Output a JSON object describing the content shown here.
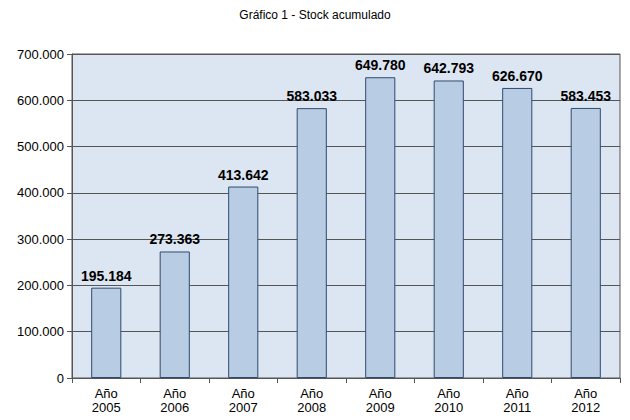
{
  "chart_data": {
    "type": "bar",
    "title": "Gráfico 1 - Stock acumulado",
    "categories": [
      "Año 2005",
      "Año 2006",
      "Año 2007",
      "Año 2008",
      "Año 2009",
      "Año 2010",
      "Año 2011",
      "Año 2012"
    ],
    "values": [
      195184,
      273363,
      413642,
      583033,
      649780,
      642793,
      626670,
      583453
    ],
    "value_labels": [
      "195.184",
      "273.363",
      "413.642",
      "583.033",
      "649.780",
      "642.793",
      "626.670",
      "583.453"
    ],
    "color": "#b8cce4",
    "ylim": [
      0,
      700000
    ],
    "yticks": [
      0,
      {
        "value": 100000,
        "label": "100.000"
      },
      {
        "value": 200000,
        "label": "200.000"
      },
      {
        "value": 300000,
        "label": "300.000"
      },
      {
        "value": 400000,
        "label": "400.000"
      },
      {
        "value": 500000,
        "label": "500.000"
      },
      {
        "value": 600000,
        "label": "600.000"
      },
      {
        "value": 700000,
        "label": "700.000"
      }
    ],
    "grid": true,
    "data_labels": true
  }
}
